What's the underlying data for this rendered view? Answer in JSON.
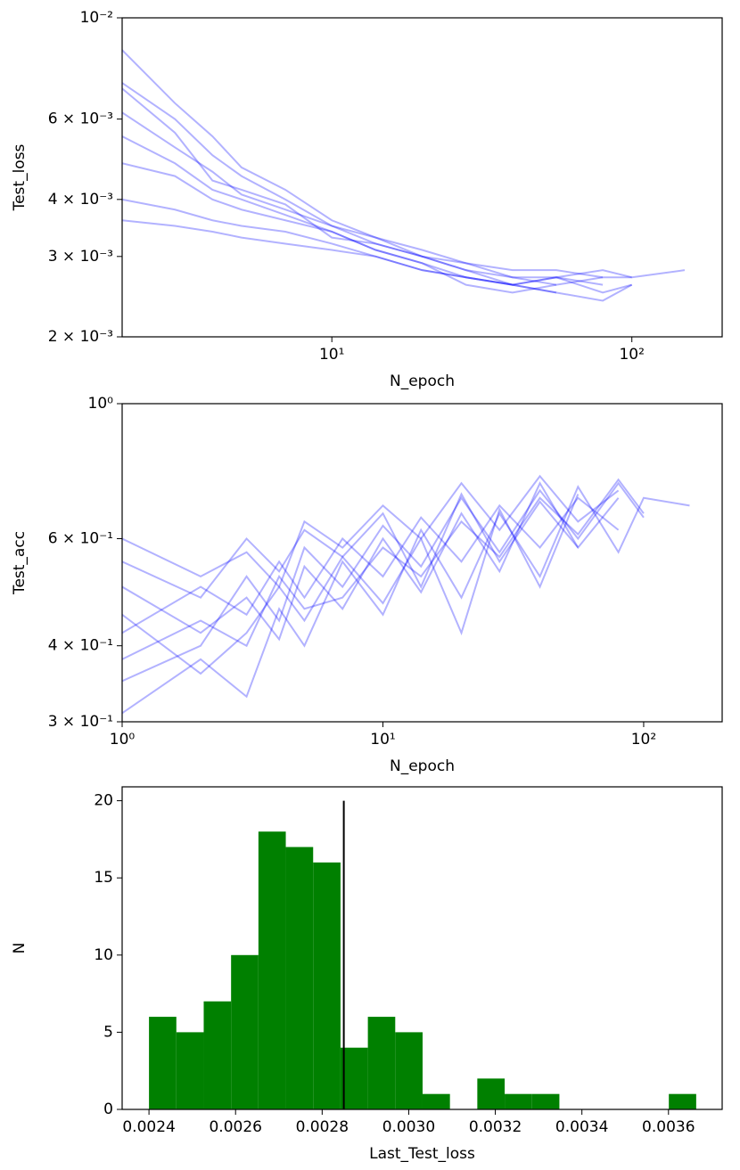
{
  "chart_data": [
    {
      "type": "line",
      "xlabel": "N_epoch",
      "ylabel": "Test_loss",
      "xscale": "log",
      "yscale": "log",
      "xlim": [
        2,
        200
      ],
      "ylim": [
        0.002,
        0.01
      ],
      "xticks": [
        {
          "value": 10,
          "label": "10¹"
        },
        {
          "value": 100,
          "label": "10²"
        }
      ],
      "yticks": [
        {
          "value": 0.002,
          "label": "2 × 10⁻³"
        },
        {
          "value": 0.003,
          "label": "3 × 10⁻³"
        },
        {
          "value": 0.004,
          "label": "4 × 10⁻³"
        },
        {
          "value": 0.006,
          "label": "6 × 10⁻³"
        },
        {
          "value": 0.01,
          "label": "10⁻²"
        }
      ],
      "alpha": 0.3,
      "x": [
        2,
        3,
        4,
        5,
        7,
        10,
        14,
        20,
        28,
        40,
        56,
        80,
        100,
        150
      ],
      "series": [
        {
          "color": "#0000ff",
          "values": [
            0.0072,
            0.006,
            0.005,
            0.0045,
            0.004,
            0.0035,
            0.0032,
            0.003,
            0.0028,
            0.0027,
            0.0027,
            0.0026,
            null,
            null
          ]
        },
        {
          "color": "#0000ff",
          "values": [
            0.0055,
            0.0048,
            0.0042,
            0.004,
            0.0037,
            0.0034,
            0.0031,
            0.0029,
            0.0027,
            0.0026,
            0.0027,
            0.0028,
            0.0027,
            0.0028
          ]
        },
        {
          "color": "#0000ff",
          "values": [
            0.0085,
            0.0065,
            0.0055,
            0.0047,
            0.0042,
            0.0036,
            0.0033,
            0.003,
            0.0028,
            0.0026,
            0.0025,
            null,
            null,
            null
          ]
        },
        {
          "color": "#0000ff",
          "values": [
            0.004,
            0.0038,
            0.0036,
            0.0035,
            0.0034,
            0.0032,
            0.003,
            0.0028,
            0.0027,
            0.0026,
            0.0027,
            0.0025,
            0.0026,
            null
          ]
        },
        {
          "color": "#0000ff",
          "values": [
            0.0062,
            0.0052,
            0.0046,
            0.0041,
            0.0038,
            0.0035,
            0.0033,
            0.0031,
            0.0029,
            0.0027,
            0.0026,
            0.0027,
            null,
            null
          ]
        },
        {
          "color": "#0000ff",
          "values": [
            0.0048,
            0.0045,
            0.004,
            0.0038,
            0.0036,
            0.0034,
            0.0031,
            0.0029,
            0.0026,
            0.0025,
            0.0026,
            null,
            null,
            null
          ]
        },
        {
          "color": "#0000ff",
          "values": [
            0.007,
            0.0056,
            0.0044,
            0.0042,
            0.0039,
            0.0033,
            0.0032,
            0.003,
            0.0029,
            0.0028,
            0.0028,
            0.0027,
            0.0027,
            null
          ]
        },
        {
          "color": "#0000ff",
          "values": [
            0.0036,
            0.0035,
            0.0034,
            0.0033,
            0.0032,
            0.0031,
            0.003,
            0.0028,
            0.0027,
            0.0026,
            0.0025,
            0.0024,
            0.0026,
            null
          ]
        }
      ]
    },
    {
      "type": "line",
      "xlabel": "N_epoch",
      "ylabel": "Test_acc",
      "xscale": "log",
      "yscale": "log",
      "xlim": [
        1,
        200
      ],
      "ylim": [
        0.3,
        1
      ],
      "xticks": [
        {
          "value": 1,
          "label": "10⁰"
        },
        {
          "value": 10,
          "label": "10¹"
        },
        {
          "value": 100,
          "label": "10²"
        }
      ],
      "yticks": [
        {
          "value": 0.3,
          "label": "3 × 10⁻¹"
        },
        {
          "value": 0.4,
          "label": "4 × 10⁻¹"
        },
        {
          "value": 0.6,
          "label": "6 × 10⁻¹"
        },
        {
          "value": 1,
          "label": "10⁰"
        }
      ],
      "alpha": 0.3,
      "x": [
        1,
        2,
        3,
        4,
        5,
        7,
        10,
        14,
        20,
        28,
        40,
        56,
        80,
        100,
        150
      ],
      "series": [
        {
          "color": "#0000ff",
          "values": [
            0.42,
            0.5,
            0.45,
            0.55,
            0.48,
            0.6,
            0.52,
            0.65,
            0.55,
            0.68,
            0.58,
            0.7,
            0.62,
            null,
            null
          ]
        },
        {
          "color": "#0000ff",
          "values": [
            0.35,
            0.4,
            0.52,
            0.44,
            0.58,
            0.5,
            0.63,
            0.54,
            0.7,
            0.57,
            0.72,
            0.6,
            0.74,
            0.65,
            null
          ]
        },
        {
          "color": "#0000ff",
          "values": [
            0.55,
            0.48,
            0.6,
            0.53,
            0.62,
            0.56,
            0.66,
            0.5,
            0.71,
            0.55,
            0.69,
            0.58,
            null,
            null,
            null
          ]
        },
        {
          "color": "#0000ff",
          "values": [
            0.31,
            0.38,
            0.33,
            0.46,
            0.4,
            0.55,
            0.45,
            0.62,
            0.48,
            0.66,
            0.52,
            0.73,
            0.57,
            0.7,
            0.68
          ]
        },
        {
          "color": "#0000ff",
          "values": [
            0.6,
            0.52,
            0.57,
            0.5,
            0.64,
            0.58,
            0.68,
            0.6,
            0.74,
            0.62,
            0.76,
            0.64,
            0.72,
            null,
            null
          ]
        },
        {
          "color": "#0000ff",
          "values": [
            0.45,
            0.36,
            0.42,
            0.5,
            0.44,
            0.56,
            0.47,
            0.6,
            0.42,
            0.67,
            0.5,
            0.71,
            null,
            null,
            null
          ]
        },
        {
          "color": "#0000ff",
          "values": [
            0.38,
            0.44,
            0.4,
            0.52,
            0.46,
            0.48,
            0.58,
            0.52,
            0.64,
            0.56,
            0.7,
            0.61,
            0.75,
            0.66,
            null
          ]
        },
        {
          "color": "#0000ff",
          "values": [
            0.5,
            0.42,
            0.48,
            0.41,
            0.54,
            0.46,
            0.6,
            0.49,
            0.66,
            0.53,
            0.74,
            0.58,
            0.7,
            null,
            null
          ]
        }
      ]
    },
    {
      "type": "histogram",
      "xlabel": "Last_Test_loss",
      "ylabel": "N",
      "color": "#008000",
      "xlim": [
        0.002338,
        0.003724
      ],
      "ylim": [
        0,
        20.9
      ],
      "xticks": [
        0.0024,
        0.0026,
        0.0028,
        {
          "value": 0.003,
          "label": "0.0030"
        },
        0.0032,
        0.0034,
        0.0036
      ],
      "yticks": [
        0,
        5,
        10,
        15,
        20
      ],
      "bins": [
        0.0024,
        0.0024632,
        0.0025264,
        0.0025896,
        0.0026528,
        0.002716,
        0.0027792,
        0.0028424,
        0.0029056,
        0.0029688,
        0.003032,
        0.0030952,
        0.0031584,
        0.0032216,
        0.0032848,
        0.003348,
        0.0034112,
        0.0034744,
        0.0035376,
        0.0036008,
        0.003664
      ],
      "values": [
        6,
        5,
        7,
        10,
        18,
        17,
        16,
        4,
        6,
        5,
        1,
        0,
        2,
        1,
        1,
        0,
        0,
        0,
        0,
        1
      ],
      "vline": {
        "x": 0.00285,
        "ylim": [
          0,
          20
        ],
        "color": "#000000"
      }
    }
  ]
}
